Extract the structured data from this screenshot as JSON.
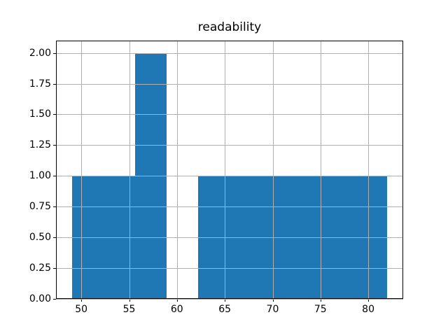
{
  "figure": {
    "background_color": "#ffffff",
    "spine_color": "#000000"
  },
  "chart_data": {
    "type": "bar",
    "subtype": "histogram",
    "title": "readability",
    "xlabel": "",
    "ylabel": "",
    "bar_color": "#1f77b4",
    "grid_color": "#b0b0b0",
    "grid": true,
    "grid_above_bars": true,
    "legend": false,
    "bin_edges": [
      49.0,
      52.3,
      55.6,
      58.9,
      62.2,
      65.5,
      68.8,
      72.1,
      75.4,
      78.7,
      82.0
    ],
    "counts": [
      1,
      1,
      2,
      0,
      1,
      1,
      1,
      1,
      1,
      1
    ],
    "xlim": [
      47.35,
      83.65
    ],
    "ylim": [
      0,
      2.1
    ],
    "x_ticks": [
      50,
      55,
      60,
      65,
      70,
      75,
      80
    ],
    "x_tick_labels": [
      "50",
      "55",
      "60",
      "65",
      "70",
      "75",
      "80"
    ],
    "y_ticks": [
      0.0,
      0.25,
      0.5,
      0.75,
      1.0,
      1.25,
      1.5,
      1.75,
      2.0
    ],
    "y_tick_labels": [
      "0.00",
      "0.25",
      "0.50",
      "0.75",
      "1.00",
      "1.25",
      "1.50",
      "1.75",
      "2.00"
    ]
  }
}
